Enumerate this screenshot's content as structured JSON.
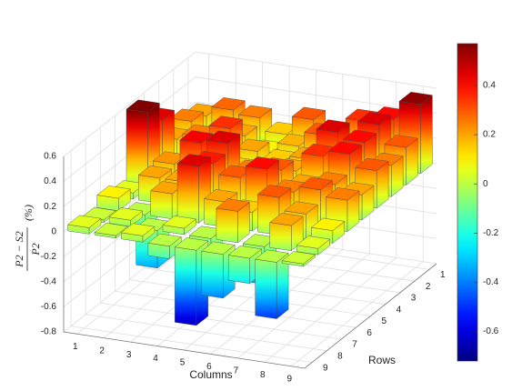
{
  "chart_data": {
    "type": "bar3d",
    "xlabel": "Columns",
    "ylabel": "Rows",
    "zlabel": {
      "numerator": "P2 − S2",
      "denominator": "P2",
      "unit": "(%)"
    },
    "x": [
      1,
      2,
      3,
      4,
      5,
      6,
      7,
      8,
      9
    ],
    "y": [
      1,
      2,
      3,
      4,
      5,
      6,
      7,
      8,
      9
    ],
    "values": [
      [
        0.2,
        0.28,
        0.25,
        0.15,
        0.3,
        0.22,
        0.35,
        0.4,
        0.55
      ],
      [
        0.25,
        0.15,
        0.2,
        0.1,
        0.18,
        0.3,
        0.25,
        0.45,
        0.3
      ],
      [
        0.2,
        0.25,
        0.35,
        0.2,
        0.15,
        0.2,
        0.45,
        0.4,
        0.25
      ],
      [
        0.45,
        0.1,
        0.3,
        0.15,
        0.12,
        0.2,
        0.35,
        0.4,
        0.3
      ],
      [
        0.6,
        0.22,
        0.42,
        0.45,
        0.25,
        0.3,
        0.2,
        0.25,
        0.2
      ],
      [
        0.05,
        0.2,
        0.2,
        0.38,
        0.3,
        0.4,
        0.25,
        0.3,
        0.25
      ],
      [
        0.1,
        -0.1,
        0.2,
        0.45,
        0.2,
        0.15,
        0.3,
        0.2,
        0.1
      ],
      [
        0.02,
        0.05,
        -0.3,
        0.05,
        -0.2,
        0.25,
        -0.3,
        0.2,
        0.05
      ],
      [
        0.05,
        0.02,
        0.05,
        -0.1,
        -0.6,
        -0.35,
        -0.2,
        -0.45,
        0.02
      ]
    ],
    "xlim": [
      0.5,
      9.5
    ],
    "ylim": [
      0.5,
      9.5
    ],
    "zlim": [
      -0.8,
      0.6
    ],
    "zticks": [
      -0.8,
      -0.6,
      -0.4,
      -0.2,
      0,
      0.2,
      0.4,
      0.6
    ],
    "grid": true,
    "colormap": "jet",
    "colorbar": {
      "clim": [
        -0.72,
        0.57
      ],
      "ticks": [
        -0.6,
        -0.4,
        -0.2,
        0,
        0.2,
        0.4
      ]
    }
  }
}
